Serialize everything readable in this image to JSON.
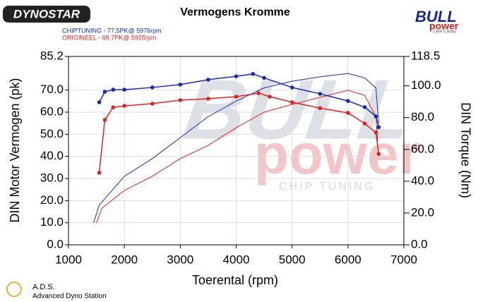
{
  "chart_data": {
    "type": "line",
    "title": "Vermogens Kromme",
    "x_label": "Toerental (rpm)",
    "y_label": "DIN Motor Vermogen (pk)",
    "y2_label": "DIN Torque (Nm)",
    "xlim": [
      1000,
      7000
    ],
    "xticks": [
      1000,
      2000,
      3000,
      4000,
      5000,
      6000,
      7000
    ],
    "ylim": [
      0,
      85.2
    ],
    "yticks": [
      {
        "value": 0,
        "label": "0.0"
      },
      {
        "value": 10,
        "label": "10.0"
      },
      {
        "value": 20,
        "label": "20.0"
      },
      {
        "value": 30,
        "label": "30.0"
      },
      {
        "value": 40,
        "label": "40.0"
      },
      {
        "value": 50,
        "label": "50.0"
      },
      {
        "value": 60,
        "label": "60.0"
      },
      {
        "value": 70,
        "label": "70.0"
      },
      {
        "value": 85.2,
        "label": "85.2"
      }
    ],
    "y2lim": [
      0,
      118.5
    ],
    "y2ticks": [
      {
        "value": 0,
        "label": "0.0"
      },
      {
        "value": 20,
        "label": "20.0"
      },
      {
        "value": 40,
        "label": "40.0"
      },
      {
        "value": 60,
        "label": "60.0"
      },
      {
        "value": 80,
        "label": "80.0"
      },
      {
        "value": 100,
        "label": "100.0"
      },
      {
        "value": 118.5,
        "label": "118.5"
      }
    ],
    "grid": true,
    "series": [
      {
        "name": "CHIPTUNING  - 77,5PK@ 5976rpm",
        "color": "#1a2aaa",
        "markers": false,
        "x": [
          1450,
          1550,
          2000,
          2500,
          3000,
          3500,
          4000,
          4500,
          5000,
          5500,
          6000,
          6300,
          6500,
          6550
        ],
        "values": [
          10,
          18,
          31,
          39,
          48.5,
          58,
          65,
          71,
          74,
          76,
          77.5,
          75.5,
          71,
          55
        ]
      },
      {
        "name": "ORIGINEEL  - 69,7PK@ 5925rpm",
        "color": "#dd2222",
        "markers": false,
        "x": [
          1500,
          1600,
          2000,
          2500,
          3000,
          3500,
          4000,
          4500,
          5000,
          5500,
          6000,
          6300,
          6500,
          6530
        ],
        "values": [
          10,
          16.6,
          24.6,
          31,
          39,
          45,
          53,
          60,
          63.5,
          66.7,
          69.9,
          67.6,
          58,
          47
        ]
      },
      {
        "color": "#1a2aaa",
        "markers": true,
        "axis": "y2",
        "x": [
          1550,
          1650,
          1800,
          2000,
          2500,
          3000,
          3500,
          4000,
          4300,
          4500,
          5000,
          5500,
          6000,
          6300,
          6500,
          6550
        ],
        "values": [
          89.7,
          96.3,
          97.6,
          97.6,
          99,
          100.8,
          103.9,
          106,
          107.5,
          105,
          99,
          95,
          90.5,
          86.6,
          80.8,
          74
        ]
      },
      {
        "color": "#dd2222",
        "markers": true,
        "axis": "y2",
        "x": [
          1550,
          1650,
          1800,
          2000,
          2500,
          3000,
          3500,
          4000,
          4400,
          4600,
          5000,
          5500,
          6000,
          6300,
          6500,
          6550
        ],
        "values": [
          45.3,
          78.6,
          86.5,
          87.4,
          88.8,
          91,
          91.9,
          93.2,
          95.4,
          93.2,
          89.7,
          86,
          83,
          76.3,
          70.6,
          57.2
        ]
      }
    ]
  },
  "logos": {
    "dynostar": "DYNOSTAR",
    "bull": "BULL",
    "power": "power",
    "chip": "CHIP TUNING",
    "watermark_bull": "BULL",
    "watermark_power": "power",
    "watermark_chip": "CHIP TUNING",
    "ads": "A.D.S.",
    "ads_full": "Advanced Dyno Station"
  }
}
